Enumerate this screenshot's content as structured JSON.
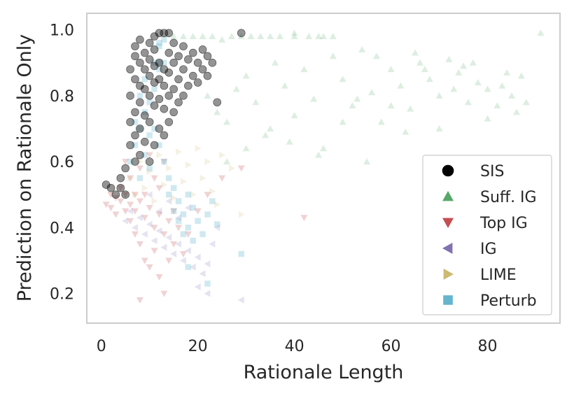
{
  "chart_data": {
    "type": "scatter",
    "title": "",
    "xlabel": "Rationale Length",
    "ylabel": "Prediction on Rationale Only",
    "xlim": [
      -3,
      95
    ],
    "ylim": [
      0.11,
      1.05
    ],
    "xticks": [
      0,
      20,
      40,
      60,
      80
    ],
    "yticks": [
      0.2,
      0.4,
      0.6,
      0.8,
      1.0
    ],
    "xtick_labels": [
      "0",
      "20",
      "40",
      "60",
      "80"
    ],
    "ytick_labels": [
      "0.2",
      "0.4",
      "0.6",
      "0.8",
      "1.0"
    ],
    "grid": false,
    "legend_position": "lower-right",
    "series": [
      {
        "name": "SIS",
        "marker": "circle",
        "color": "#000000",
        "opacity": 0.42,
        "points": [
          [
            1,
            0.53
          ],
          [
            2,
            0.52
          ],
          [
            3,
            0.5
          ],
          [
            4,
            0.52
          ],
          [
            4,
            0.55
          ],
          [
            5,
            0.5
          ],
          [
            5,
            0.58
          ],
          [
            6,
            0.65
          ],
          [
            6,
            0.72
          ],
          [
            6,
            0.8
          ],
          [
            6,
            0.88
          ],
          [
            7,
            0.6
          ],
          [
            7,
            0.68
          ],
          [
            7,
            0.75
          ],
          [
            7,
            0.85
          ],
          [
            7,
            0.92
          ],
          [
            7,
            0.95
          ],
          [
            8,
            0.62
          ],
          [
            8,
            0.7
          ],
          [
            8,
            0.78
          ],
          [
            8,
            0.83
          ],
          [
            8,
            0.9
          ],
          [
            8,
            0.97
          ],
          [
            9,
            0.66
          ],
          [
            9,
            0.74
          ],
          [
            9,
            0.82
          ],
          [
            9,
            0.88
          ],
          [
            9,
            0.93
          ],
          [
            10,
            0.6
          ],
          [
            10,
            0.72
          ],
          [
            10,
            0.8
          ],
          [
            10,
            0.86
          ],
          [
            10,
            0.91
          ],
          [
            10,
            0.96
          ],
          [
            11,
            0.65
          ],
          [
            11,
            0.77
          ],
          [
            11,
            0.84
          ],
          [
            11,
            0.89
          ],
          [
            11,
            0.94
          ],
          [
            11,
            0.98
          ],
          [
            12,
            0.7
          ],
          [
            12,
            0.79
          ],
          [
            12,
            0.85
          ],
          [
            12,
            0.9
          ],
          [
            12,
            0.99
          ],
          [
            13,
            0.68
          ],
          [
            13,
            0.76
          ],
          [
            13,
            0.83
          ],
          [
            13,
            0.88
          ],
          [
            13,
            0.99
          ],
          [
            14,
            0.72
          ],
          [
            14,
            0.8
          ],
          [
            14,
            0.87
          ],
          [
            14,
            0.93
          ],
          [
            14,
            0.99
          ],
          [
            15,
            0.75
          ],
          [
            15,
            0.82
          ],
          [
            15,
            0.9
          ],
          [
            15,
            0.96
          ],
          [
            16,
            0.78
          ],
          [
            16,
            0.85
          ],
          [
            16,
            0.92
          ],
          [
            17,
            0.8
          ],
          [
            17,
            0.88
          ],
          [
            17,
            0.95
          ],
          [
            18,
            0.83
          ],
          [
            18,
            0.91
          ],
          [
            19,
            0.86
          ],
          [
            19,
            0.93
          ],
          [
            20,
            0.84
          ],
          [
            20,
            0.9
          ],
          [
            21,
            0.88
          ],
          [
            21,
            0.94
          ],
          [
            22,
            0.86
          ],
          [
            22,
            0.92
          ],
          [
            23,
            0.9
          ],
          [
            24,
            0.78
          ],
          [
            29,
            0.99
          ]
        ]
      },
      {
        "name": "Suff. IG",
        "marker": "triangle-up",
        "color": "#55a868",
        "opacity": 0.2,
        "points": [
          [
            15,
            0.98
          ],
          [
            17,
            0.98
          ],
          [
            19,
            0.98
          ],
          [
            21,
            0.98
          ],
          [
            23,
            0.98
          ],
          [
            25,
            0.97
          ],
          [
            27,
            0.98
          ],
          [
            29,
            0.98
          ],
          [
            31,
            0.98
          ],
          [
            33,
            0.98
          ],
          [
            35,
            0.98
          ],
          [
            37,
            0.98
          ],
          [
            40,
            0.98
          ],
          [
            43,
            0.98
          ],
          [
            46,
            0.98
          ],
          [
            48,
            0.98
          ],
          [
            91,
            0.99
          ],
          [
            22,
            0.8
          ],
          [
            24,
            0.75
          ],
          [
            26,
            0.72
          ],
          [
            28,
            0.82
          ],
          [
            30,
            0.86
          ],
          [
            32,
            0.78
          ],
          [
            34,
            0.68
          ],
          [
            36,
            0.9
          ],
          [
            38,
            0.83
          ],
          [
            40,
            0.74
          ],
          [
            42,
            0.88
          ],
          [
            44,
            0.79
          ],
          [
            46,
            0.64
          ],
          [
            48,
            0.92
          ],
          [
            50,
            0.85
          ],
          [
            52,
            0.77
          ],
          [
            54,
            0.94
          ],
          [
            56,
            0.81
          ],
          [
            58,
            0.72
          ],
          [
            60,
            0.88
          ],
          [
            62,
            0.83
          ],
          [
            64,
            0.76
          ],
          [
            66,
            0.9
          ],
          [
            68,
            0.85
          ],
          [
            70,
            0.8
          ],
          [
            72,
            0.91
          ],
          [
            74,
            0.87
          ],
          [
            76,
            0.78
          ],
          [
            78,
            0.84
          ],
          [
            80,
            0.82
          ],
          [
            82,
            0.77
          ],
          [
            84,
            0.87
          ],
          [
            86,
            0.75
          ],
          [
            88,
            0.78
          ],
          [
            65,
            0.93
          ],
          [
            75,
            0.89
          ],
          [
            80,
            0.73
          ],
          [
            85,
            0.8
          ],
          [
            35,
            0.7
          ],
          [
            45,
            0.62
          ],
          [
            55,
            0.6
          ],
          [
            70,
            0.7
          ],
          [
            26,
            0.6
          ],
          [
            30,
            0.64
          ],
          [
            39,
            0.66
          ],
          [
            50,
            0.72
          ],
          [
            60,
            0.77
          ],
          [
            40,
            0.99
          ],
          [
            45,
            0.98
          ],
          [
            53,
            0.79
          ],
          [
            57,
            0.92
          ],
          [
            63,
            0.69
          ],
          [
            67,
            0.88
          ],
          [
            73,
            0.82
          ],
          [
            77,
            0.9
          ],
          [
            83,
            0.83
          ],
          [
            87,
            0.86
          ]
        ]
      },
      {
        "name": "Top IG",
        "marker": "triangle-down",
        "color": "#c44e52",
        "opacity": 0.25,
        "points": [
          [
            1,
            0.47
          ],
          [
            2,
            0.5
          ],
          [
            2,
            0.46
          ],
          [
            3,
            0.49
          ],
          [
            3,
            0.44
          ],
          [
            4,
            0.48
          ],
          [
            4,
            0.52
          ],
          [
            5,
            0.45
          ],
          [
            5,
            0.5
          ],
          [
            5,
            0.6
          ],
          [
            6,
            0.47
          ],
          [
            6,
            0.42
          ],
          [
            6,
            0.55
          ],
          [
            7,
            0.5
          ],
          [
            7,
            0.38
          ],
          [
            7,
            0.45
          ],
          [
            8,
            0.48
          ],
          [
            8,
            0.35
          ],
          [
            8,
            0.58
          ],
          [
            9,
            0.43
          ],
          [
            9,
            0.3
          ],
          [
            9,
            0.5
          ],
          [
            10,
            0.46
          ],
          [
            10,
            0.28
          ],
          [
            10,
            0.62
          ],
          [
            11,
            0.4
          ],
          [
            11,
            0.33
          ],
          [
            11,
            0.55
          ],
          [
            12,
            0.44
          ],
          [
            12,
            0.25
          ],
          [
            12,
            0.52
          ],
          [
            13,
            0.38
          ],
          [
            13,
            0.2
          ],
          [
            14,
            0.42
          ],
          [
            14,
            0.3
          ],
          [
            15,
            0.35
          ],
          [
            15,
            0.45
          ],
          [
            16,
            0.4
          ],
          [
            17,
            0.32
          ],
          [
            18,
            0.38
          ],
          [
            20,
            0.45
          ],
          [
            22,
            0.5
          ],
          [
            25,
            0.55
          ],
          [
            29,
            0.58
          ],
          [
            42,
            0.43
          ],
          [
            8,
            0.18
          ],
          [
            13,
            0.6
          ]
        ]
      },
      {
        "name": "IG",
        "marker": "triangle-left",
        "color": "#8172b2",
        "opacity": 0.2,
        "points": [
          [
            5,
            0.42
          ],
          [
            6,
            0.45
          ],
          [
            7,
            0.4
          ],
          [
            8,
            0.43
          ],
          [
            9,
            0.38
          ],
          [
            10,
            0.41
          ],
          [
            11,
            0.36
          ],
          [
            12,
            0.39
          ],
          [
            13,
            0.34
          ],
          [
            14,
            0.37
          ],
          [
            15,
            0.32
          ],
          [
            16,
            0.35
          ],
          [
            17,
            0.3
          ],
          [
            18,
            0.33
          ],
          [
            19,
            0.28
          ],
          [
            20,
            0.31
          ],
          [
            21,
            0.26
          ],
          [
            22,
            0.29
          ],
          [
            23,
            0.35
          ],
          [
            24,
            0.4
          ],
          [
            10,
            0.5
          ],
          [
            14,
            0.48
          ],
          [
            18,
            0.46
          ],
          [
            20,
            0.22
          ],
          [
            22,
            0.2
          ],
          [
            29,
            0.18
          ],
          [
            12,
            0.45
          ],
          [
            16,
            0.43
          ]
        ]
      },
      {
        "name": "LIME",
        "marker": "triangle-right",
        "color": "#ccb974",
        "opacity": 0.2,
        "points": [
          [
            6,
            0.55
          ],
          [
            7,
            0.5
          ],
          [
            8,
            0.6
          ],
          [
            9,
            0.52
          ],
          [
            10,
            0.57
          ],
          [
            11,
            0.48
          ],
          [
            12,
            0.62
          ],
          [
            13,
            0.53
          ],
          [
            14,
            0.58
          ],
          [
            15,
            0.49
          ],
          [
            16,
            0.63
          ],
          [
            17,
            0.54
          ],
          [
            18,
            0.59
          ],
          [
            19,
            0.5
          ],
          [
            20,
            0.64
          ],
          [
            21,
            0.55
          ],
          [
            22,
            0.6
          ],
          [
            23,
            0.51
          ],
          [
            24,
            0.47
          ],
          [
            25,
            0.62
          ],
          [
            27,
            0.58
          ],
          [
            29,
            0.44
          ]
        ]
      },
      {
        "name": "Perturb",
        "marker": "square",
        "color": "#64b5cd",
        "opacity": 0.3,
        "points": [
          [
            6,
            0.6
          ],
          [
            7,
            0.65
          ],
          [
            7,
            0.72
          ],
          [
            8,
            0.55
          ],
          [
            8,
            0.7
          ],
          [
            8,
            0.8
          ],
          [
            9,
            0.62
          ],
          [
            9,
            0.75
          ],
          [
            9,
            0.85
          ],
          [
            10,
            0.58
          ],
          [
            10,
            0.68
          ],
          [
            10,
            0.78
          ],
          [
            11,
            0.9
          ],
          [
            11,
            0.82
          ],
          [
            11,
            0.7
          ],
          [
            12,
            0.95
          ],
          [
            12,
            0.88
          ],
          [
            12,
            0.96
          ],
          [
            12,
            0.65
          ],
          [
            13,
            0.97
          ],
          [
            13,
            0.9
          ],
          [
            13,
            0.6
          ],
          [
            14,
            0.55
          ],
          [
            14,
            0.5
          ],
          [
            15,
            0.52
          ],
          [
            15,
            0.45
          ],
          [
            16,
            0.48
          ],
          [
            16,
            0.42
          ],
          [
            17,
            0.44
          ],
          [
            17,
            0.38
          ],
          [
            18,
            0.4
          ],
          [
            18,
            0.5
          ],
          [
            19,
            0.36
          ],
          [
            19,
            0.46
          ],
          [
            20,
            0.42
          ],
          [
            21,
            0.38
          ],
          [
            22,
            0.44
          ],
          [
            23,
            0.48
          ],
          [
            24,
            0.41
          ],
          [
            29,
            0.32
          ],
          [
            18,
            0.28
          ],
          [
            22,
            0.23
          ],
          [
            12,
            0.9
          ]
        ]
      }
    ]
  }
}
